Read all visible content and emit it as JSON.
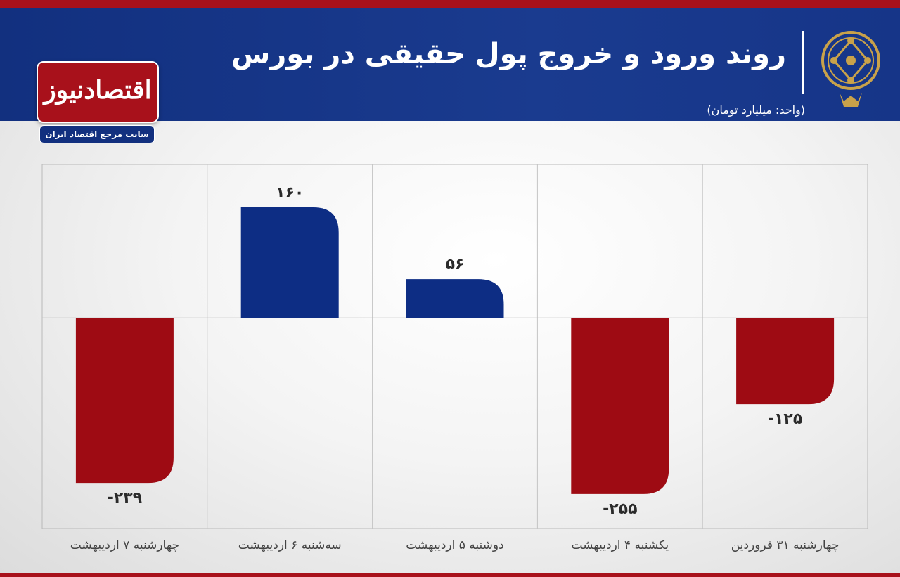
{
  "header": {
    "title": "روند ورود و خروج پول حقیقی در بورس",
    "unit": "(واحد: میلیارد تومان)"
  },
  "brand": {
    "name": "اقتصادنیوز",
    "tagline": "سایت مرجع اقتصاد ایران"
  },
  "colors": {
    "header_bg": "#163588",
    "accent_red": "#a8111b",
    "positive_bar": "#0d2d84",
    "negative_bar": "#9e0b13"
  },
  "icons": {
    "emblem": "stock-exchange-emblem-icon"
  },
  "chart_data": {
    "type": "bar",
    "categories": [
      "چهارشنبه ۳۱ فروردین",
      "یکشنبه ۴ اردیبهشت",
      "دوشنبه ۵ اردیبهشت",
      "سه‌شنبه ۶ اردیبهشت",
      "چهارشنبه ۷ اردیبهشت"
    ],
    "values": [
      -125,
      -255,
      56,
      160,
      -239
    ],
    "value_labels": [
      "-۱۲۵",
      "-۲۵۵",
      "۵۶",
      "۱۶۰",
      "-۲۳۹"
    ],
    "ylim": [
      -305,
      222
    ],
    "grid": true,
    "legend": "none"
  }
}
